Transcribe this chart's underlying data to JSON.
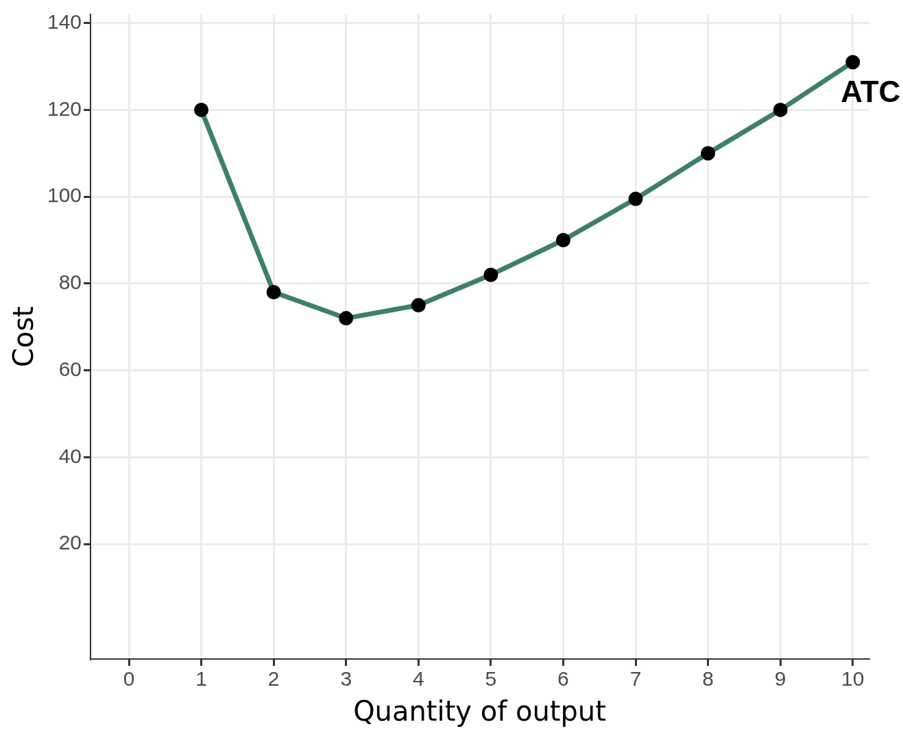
{
  "chart_data": {
    "type": "line",
    "xlabel": "Quantity of output",
    "ylabel": "Cost",
    "x": [
      1,
      2,
      3,
      4,
      5,
      6,
      7,
      8,
      9,
      10
    ],
    "series": [
      {
        "name": "ATC",
        "color": "#3d7f6f",
        "values": [
          120,
          78,
          72,
          75,
          82,
          90,
          99.5,
          110,
          120,
          131
        ]
      }
    ],
    "xlim": [
      -0.53,
      10.22
    ],
    "xticks": [
      0,
      1,
      2,
      3,
      4,
      5,
      6,
      7,
      8,
      9,
      10
    ],
    "ylim": [
      -6.5,
      142
    ],
    "yticks": [
      20,
      40,
      60,
      80,
      100,
      120,
      140
    ],
    "grid": true,
    "legend": false,
    "marker": "circle",
    "line_style": "solid"
  }
}
